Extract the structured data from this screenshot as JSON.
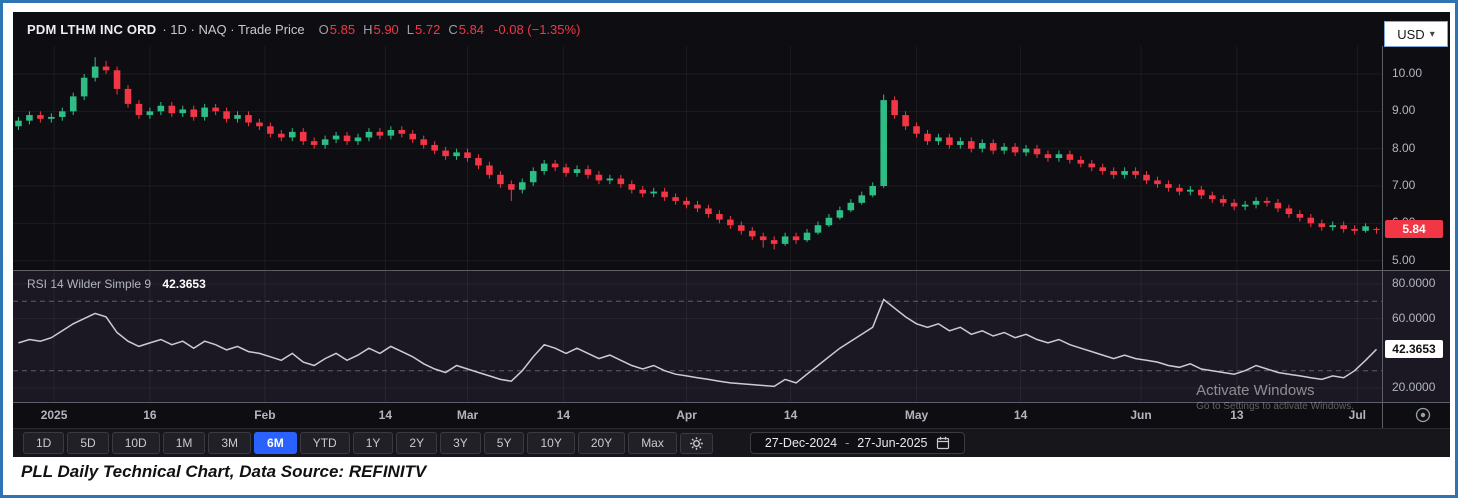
{
  "header": {
    "symbol": "PDM LTHM INC ORD",
    "meta": "· 1D · NAQ · Trade Price",
    "ohlc": {
      "o_label": "O",
      "o": "5.85",
      "h_label": "H",
      "h": "5.90",
      "l_label": "L",
      "l": "5.72",
      "c_label": "C",
      "c": "5.84",
      "change": "-0.08 (−1.35%)"
    },
    "currency": "USD"
  },
  "price_axis": {
    "labels": [
      "10.00",
      "9.00",
      "8.00",
      "7.00",
      "6.00",
      "5.00"
    ],
    "last_price_badge": "5.84"
  },
  "rsi_panel": {
    "label": "RSI 14 Wilder Simple 9",
    "value": "42.3653",
    "axis_labels": [
      "80.0000",
      "60.0000",
      "20.0000"
    ],
    "badge": "42.3653"
  },
  "time_axis": {
    "ticks": [
      {
        "label": "2025",
        "pos": 0.03
      },
      {
        "label": "16",
        "pos": 0.1
      },
      {
        "label": "Feb",
        "pos": 0.184
      },
      {
        "label": "14",
        "pos": 0.272
      },
      {
        "label": "Mar",
        "pos": 0.332
      },
      {
        "label": "14",
        "pos": 0.402
      },
      {
        "label": "Apr",
        "pos": 0.492
      },
      {
        "label": "14",
        "pos": 0.568
      },
      {
        "label": "May",
        "pos": 0.66
      },
      {
        "label": "14",
        "pos": 0.736
      },
      {
        "label": "Jun",
        "pos": 0.824
      },
      {
        "label": "13",
        "pos": 0.894
      },
      {
        "label": "Jul",
        "pos": 0.982
      }
    ]
  },
  "toolbar": {
    "ranges": [
      {
        "label": "1D"
      },
      {
        "label": "5D"
      },
      {
        "label": "10D"
      },
      {
        "label": "1M"
      },
      {
        "label": "3M"
      },
      {
        "label": "6M",
        "active": true
      },
      {
        "label": "YTD"
      },
      {
        "label": "1Y"
      },
      {
        "label": "2Y"
      },
      {
        "label": "3Y"
      },
      {
        "label": "5Y"
      },
      {
        "label": "10Y"
      },
      {
        "label": "20Y"
      },
      {
        "label": "Max"
      }
    ],
    "date_range": {
      "start": "27-Dec-2024",
      "sep": "-",
      "end": "27-Jun-2025"
    }
  },
  "watermark": {
    "line1": "Activate Windows",
    "line2": "Go to Settings to activate Windows."
  },
  "caption": "PLL Daily Technical Chart, Data Source: REFINITV",
  "colors": {
    "up": "#2ebd85",
    "down": "#f23645",
    "accent_blue": "#2962ff",
    "rsi_line": "#c9ccd6",
    "axis_text": "#b2b5be",
    "border_blue": "#2e74b5",
    "grid": "rgba(255,255,255,0.06)",
    "band_dash": "rgba(255,255,255,0.30)"
  },
  "chart_data": {
    "type": "candlestick",
    "title": "PDM LTHM INC ORD · 1D · NAQ · Trade Price",
    "interval": "1D",
    "currency": "USD",
    "date_range": [
      "27-Dec-2024",
      "27-Jun-2025"
    ],
    "price_ylim": [
      4.75,
      10.75
    ],
    "price_gridlines": [
      5,
      6,
      7,
      8,
      9,
      10
    ],
    "last": {
      "open": 5.85,
      "high": 5.9,
      "low": 5.72,
      "close": 5.84,
      "change": -0.08,
      "change_pct": -1.35
    },
    "candles_ohlc": [
      [
        8.6,
        8.85,
        8.5,
        8.75
      ],
      [
        8.75,
        9.0,
        8.65,
        8.9
      ],
      [
        8.9,
        9.0,
        8.7,
        8.8
      ],
      [
        8.8,
        8.95,
        8.7,
        8.85
      ],
      [
        8.85,
        9.1,
        8.75,
        9.0
      ],
      [
        9.0,
        9.5,
        8.9,
        9.4
      ],
      [
        9.4,
        10.0,
        9.3,
        9.9
      ],
      [
        9.9,
        10.45,
        9.8,
        10.2
      ],
      [
        10.2,
        10.35,
        10.0,
        10.1
      ],
      [
        10.1,
        10.2,
        9.45,
        9.6
      ],
      [
        9.6,
        9.7,
        9.1,
        9.2
      ],
      [
        9.2,
        9.3,
        8.8,
        8.9
      ],
      [
        8.9,
        9.1,
        8.8,
        9.0
      ],
      [
        9.0,
        9.25,
        8.9,
        9.15
      ],
      [
        9.15,
        9.25,
        8.85,
        8.95
      ],
      [
        8.95,
        9.15,
        8.85,
        9.05
      ],
      [
        9.05,
        9.15,
        8.75,
        8.85
      ],
      [
        8.85,
        9.2,
        8.75,
        9.1
      ],
      [
        9.1,
        9.2,
        8.9,
        9.0
      ],
      [
        9.0,
        9.1,
        8.7,
        8.8
      ],
      [
        8.8,
        9.0,
        8.7,
        8.9
      ],
      [
        8.9,
        9.0,
        8.6,
        8.7
      ],
      [
        8.7,
        8.8,
        8.5,
        8.6
      ],
      [
        8.6,
        8.7,
        8.3,
        8.4
      ],
      [
        8.4,
        8.5,
        8.2,
        8.3
      ],
      [
        8.3,
        8.55,
        8.2,
        8.45
      ],
      [
        8.45,
        8.55,
        8.1,
        8.2
      ],
      [
        8.2,
        8.3,
        8.0,
        8.1
      ],
      [
        8.1,
        8.35,
        8.0,
        8.25
      ],
      [
        8.25,
        8.45,
        8.15,
        8.35
      ],
      [
        8.35,
        8.45,
        8.1,
        8.2
      ],
      [
        8.2,
        8.4,
        8.1,
        8.3
      ],
      [
        8.3,
        8.55,
        8.2,
        8.45
      ],
      [
        8.45,
        8.55,
        8.25,
        8.35
      ],
      [
        8.35,
        8.6,
        8.25,
        8.5
      ],
      [
        8.5,
        8.6,
        8.3,
        8.4
      ],
      [
        8.4,
        8.5,
        8.15,
        8.25
      ],
      [
        8.25,
        8.35,
        8.0,
        8.1
      ],
      [
        8.1,
        8.2,
        7.85,
        7.95
      ],
      [
        7.95,
        8.05,
        7.7,
        7.8
      ],
      [
        7.8,
        8.0,
        7.7,
        7.9
      ],
      [
        7.9,
        8.0,
        7.65,
        7.75
      ],
      [
        7.75,
        7.85,
        7.45,
        7.55
      ],
      [
        7.55,
        7.65,
        7.2,
        7.3
      ],
      [
        7.3,
        7.4,
        6.95,
        7.05
      ],
      [
        7.05,
        7.15,
        6.6,
        6.9
      ],
      [
        6.9,
        7.2,
        6.8,
        7.1
      ],
      [
        7.1,
        7.5,
        7.0,
        7.4
      ],
      [
        7.4,
        7.7,
        7.3,
        7.6
      ],
      [
        7.6,
        7.7,
        7.4,
        7.5
      ],
      [
        7.5,
        7.6,
        7.25,
        7.35
      ],
      [
        7.35,
        7.55,
        7.25,
        7.45
      ],
      [
        7.45,
        7.55,
        7.2,
        7.3
      ],
      [
        7.3,
        7.4,
        7.05,
        7.15
      ],
      [
        7.15,
        7.3,
        7.05,
        7.2
      ],
      [
        7.2,
        7.3,
        6.95,
        7.05
      ],
      [
        7.05,
        7.15,
        6.8,
        6.9
      ],
      [
        6.9,
        7.0,
        6.7,
        6.8
      ],
      [
        6.8,
        6.95,
        6.7,
        6.85
      ],
      [
        6.85,
        6.95,
        6.6,
        6.7
      ],
      [
        6.7,
        6.8,
        6.5,
        6.6
      ],
      [
        6.6,
        6.7,
        6.4,
        6.5
      ],
      [
        6.5,
        6.6,
        6.3,
        6.4
      ],
      [
        6.4,
        6.5,
        6.15,
        6.25
      ],
      [
        6.25,
        6.35,
        6.0,
        6.1
      ],
      [
        6.1,
        6.2,
        5.85,
        5.95
      ],
      [
        5.95,
        6.05,
        5.7,
        5.8
      ],
      [
        5.8,
        5.9,
        5.55,
        5.65
      ],
      [
        5.65,
        5.75,
        5.35,
        5.55
      ],
      [
        5.55,
        5.65,
        5.3,
        5.45
      ],
      [
        5.45,
        5.75,
        5.4,
        5.65
      ],
      [
        5.65,
        5.75,
        5.45,
        5.55
      ],
      [
        5.55,
        5.85,
        5.5,
        5.75
      ],
      [
        5.75,
        6.05,
        5.7,
        5.95
      ],
      [
        5.95,
        6.25,
        5.9,
        6.15
      ],
      [
        6.15,
        6.45,
        6.1,
        6.35
      ],
      [
        6.35,
        6.65,
        6.3,
        6.55
      ],
      [
        6.55,
        6.85,
        6.5,
        6.75
      ],
      [
        6.75,
        7.1,
        6.7,
        7.0
      ],
      [
        7.0,
        9.45,
        6.95,
        9.3
      ],
      [
        9.3,
        9.4,
        8.8,
        8.9
      ],
      [
        8.9,
        9.0,
        8.5,
        8.6
      ],
      [
        8.6,
        8.7,
        8.3,
        8.4
      ],
      [
        8.4,
        8.5,
        8.1,
        8.2
      ],
      [
        8.2,
        8.4,
        8.1,
        8.3
      ],
      [
        8.3,
        8.4,
        8.0,
        8.1
      ],
      [
        8.1,
        8.3,
        8.0,
        8.2
      ],
      [
        8.2,
        8.3,
        7.9,
        8.0
      ],
      [
        8.0,
        8.25,
        7.9,
        8.15
      ],
      [
        8.15,
        8.25,
        7.85,
        7.95
      ],
      [
        7.95,
        8.15,
        7.85,
        8.05
      ],
      [
        8.05,
        8.15,
        7.8,
        7.9
      ],
      [
        7.9,
        8.1,
        7.8,
        8.0
      ],
      [
        8.0,
        8.1,
        7.75,
        7.85
      ],
      [
        7.85,
        7.95,
        7.65,
        7.75
      ],
      [
        7.75,
        7.95,
        7.65,
        7.85
      ],
      [
        7.85,
        7.95,
        7.6,
        7.7
      ],
      [
        7.7,
        7.8,
        7.5,
        7.6
      ],
      [
        7.6,
        7.7,
        7.4,
        7.5
      ],
      [
        7.5,
        7.6,
        7.3,
        7.4
      ],
      [
        7.4,
        7.5,
        7.2,
        7.3
      ],
      [
        7.3,
        7.5,
        7.2,
        7.4
      ],
      [
        7.4,
        7.5,
        7.2,
        7.3
      ],
      [
        7.3,
        7.4,
        7.05,
        7.15
      ],
      [
        7.15,
        7.25,
        6.95,
        7.05
      ],
      [
        7.05,
        7.15,
        6.85,
        6.95
      ],
      [
        6.95,
        7.05,
        6.75,
        6.85
      ],
      [
        6.85,
        7.0,
        6.75,
        6.9
      ],
      [
        6.9,
        7.0,
        6.65,
        6.75
      ],
      [
        6.75,
        6.85,
        6.55,
        6.65
      ],
      [
        6.65,
        6.75,
        6.45,
        6.55
      ],
      [
        6.55,
        6.65,
        6.35,
        6.45
      ],
      [
        6.45,
        6.6,
        6.35,
        6.5
      ],
      [
        6.5,
        6.7,
        6.4,
        6.6
      ],
      [
        6.6,
        6.7,
        6.45,
        6.55
      ],
      [
        6.55,
        6.65,
        6.3,
        6.4
      ],
      [
        6.4,
        6.5,
        6.15,
        6.25
      ],
      [
        6.25,
        6.35,
        6.05,
        6.15
      ],
      [
        6.15,
        6.25,
        5.9,
        6.0
      ],
      [
        6.0,
        6.1,
        5.8,
        5.9
      ],
      [
        5.9,
        6.05,
        5.8,
        5.95
      ],
      [
        5.95,
        6.05,
        5.75,
        5.85
      ],
      [
        5.85,
        5.95,
        5.7,
        5.8
      ],
      [
        5.8,
        6.0,
        5.75,
        5.92
      ],
      [
        5.85,
        5.9,
        5.72,
        5.84
      ]
    ],
    "rsi": {
      "type": "line",
      "label": "RSI 14 Wilder Simple 9",
      "ylim": [
        12,
        88
      ],
      "bands": [
        70,
        30
      ],
      "gridlines": [
        80,
        60,
        20
      ],
      "last": 42.3653,
      "values": [
        46,
        48,
        47,
        49,
        53,
        57,
        60,
        63,
        61,
        52,
        47,
        44,
        46,
        48,
        45,
        47,
        43,
        47,
        45,
        42,
        44,
        41,
        40,
        38,
        36,
        40,
        35,
        33,
        37,
        40,
        36,
        39,
        43,
        40,
        44,
        41,
        38,
        34,
        31,
        29,
        33,
        31,
        29,
        27,
        25,
        24,
        30,
        38,
        45,
        43,
        40,
        43,
        40,
        37,
        39,
        36,
        33,
        31,
        33,
        30,
        28,
        27,
        26,
        25,
        24,
        23,
        22.5,
        22,
        21.5,
        21,
        25,
        23,
        28,
        33,
        38,
        43,
        47,
        51,
        55,
        71,
        66,
        61,
        57,
        55,
        57,
        53,
        55,
        51,
        53,
        50,
        52,
        49,
        51,
        48,
        46,
        48,
        45,
        43,
        41,
        39,
        37,
        39,
        37,
        36,
        35,
        33,
        32,
        34,
        31,
        30,
        29,
        28,
        30,
        33,
        31,
        29,
        28,
        27,
        26,
        25,
        27,
        26,
        30,
        36,
        42.3653
      ]
    }
  }
}
